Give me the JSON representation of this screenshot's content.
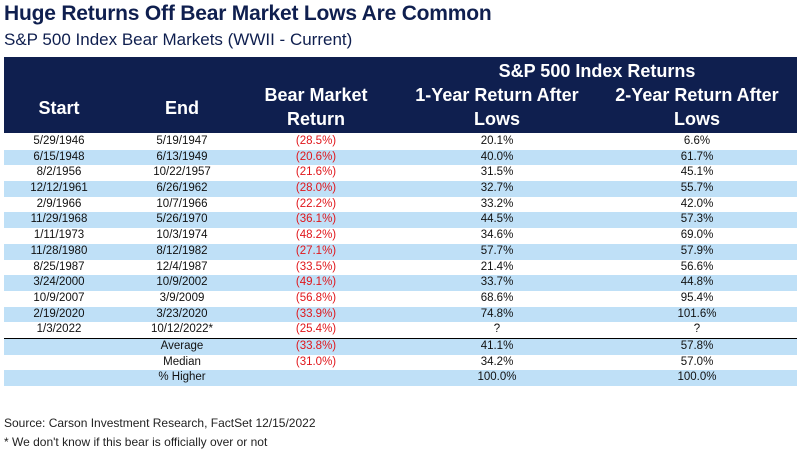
{
  "chart_data": {
    "type": "table",
    "title": "Huge Returns Off Bear Market Lows Are Common",
    "subtitle": "S&P 500 Index Bear Markets (WWII - Current)",
    "group_header": "S&P 500 Index Returns",
    "columns": {
      "start": "Start",
      "end": "End",
      "bear_l1": "Bear Market",
      "bear_l2": "Return",
      "one_l1": "1-Year Return After",
      "one_l2": "Lows",
      "two_l1": "2-Year Return After",
      "two_l2": "Lows"
    },
    "rows": [
      {
        "start": "5/29/1946",
        "end": "5/19/1947",
        "bear": "(28.5%)",
        "one": "20.1%",
        "two": "6.6%"
      },
      {
        "start": "6/15/1948",
        "end": "6/13/1949",
        "bear": "(20.6%)",
        "one": "40.0%",
        "two": "61.7%"
      },
      {
        "start": "8/2/1956",
        "end": "10/22/1957",
        "bear": "(21.6%)",
        "one": "31.5%",
        "two": "45.1%"
      },
      {
        "start": "12/12/1961",
        "end": "6/26/1962",
        "bear": "(28.0%)",
        "one": "32.7%",
        "two": "55.7%"
      },
      {
        "start": "2/9/1966",
        "end": "10/7/1966",
        "bear": "(22.2%)",
        "one": "33.2%",
        "two": "42.0%"
      },
      {
        "start": "11/29/1968",
        "end": "5/26/1970",
        "bear": "(36.1%)",
        "one": "44.5%",
        "two": "57.3%"
      },
      {
        "start": "1/11/1973",
        "end": "10/3/1974",
        "bear": "(48.2%)",
        "one": "34.6%",
        "two": "69.0%"
      },
      {
        "start": "11/28/1980",
        "end": "8/12/1982",
        "bear": "(27.1%)",
        "one": "57.7%",
        "two": "57.9%"
      },
      {
        "start": "8/25/1987",
        "end": "12/4/1987",
        "bear": "(33.5%)",
        "one": "21.4%",
        "two": "56.6%"
      },
      {
        "start": "3/24/2000",
        "end": "10/9/2002",
        "bear": "(49.1%)",
        "one": "33.7%",
        "two": "44.8%"
      },
      {
        "start": "10/9/2007",
        "end": "3/9/2009",
        "bear": "(56.8%)",
        "one": "68.6%",
        "two": "95.4%"
      },
      {
        "start": "2/19/2020",
        "end": "3/23/2020",
        "bear": "(33.9%)",
        "one": "74.8%",
        "two": "101.6%"
      },
      {
        "start": "1/3/2022",
        "end": "10/12/2022*",
        "bear": "(25.4%)",
        "one": "?",
        "two": "?"
      }
    ],
    "summary": [
      {
        "label": "Average",
        "bear": "(33.8%)",
        "one": "41.1%",
        "two": "57.8%"
      },
      {
        "label": "Median",
        "bear": "(31.0%)",
        "one": "34.2%",
        "two": "57.0%"
      },
      {
        "label": "% Higher",
        "bear": "",
        "one": "100.0%",
        "two": "100.0%"
      }
    ],
    "colors": {
      "header_bg": "#0f1f4f",
      "band": "#bfe0f7",
      "negative": "#e0161b"
    }
  },
  "footer": {
    "source": "Source: Carson Investment Research, FactSet 12/15/2022",
    "note": "* We don't know if this bear is officially over or not"
  }
}
